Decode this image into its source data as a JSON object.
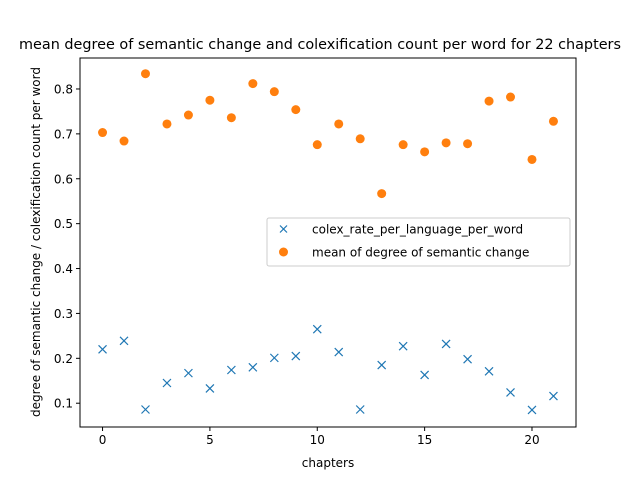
{
  "chart_data": {
    "type": "scatter",
    "title": "mean degree of semantic change and colexification count per word for 22 chapters",
    "xlabel": "chapters",
    "ylabel": "degree of semantic change / colexification count per word",
    "xlim": [
      -1.05,
      22.05
    ],
    "ylim": [
      0.047,
      0.869
    ],
    "x_ticks": [
      0,
      5,
      10,
      15,
      20
    ],
    "y_ticks": [
      0.1,
      0.2,
      0.3,
      0.4,
      0.5,
      0.6,
      0.7,
      0.8
    ],
    "grid": false,
    "legend_position": "center-right",
    "x": [
      0,
      1,
      2,
      3,
      4,
      5,
      6,
      7,
      8,
      9,
      10,
      11,
      12,
      13,
      14,
      15,
      16,
      17,
      18,
      19,
      20,
      21
    ],
    "series": [
      {
        "name": "colex_rate_per_language_per_word",
        "marker": "x",
        "color": "#1f77b4",
        "values": [
          0.22,
          0.239,
          0.086,
          0.145,
          0.167,
          0.133,
          0.174,
          0.18,
          0.201,
          0.205,
          0.265,
          0.214,
          0.086,
          0.185,
          0.227,
          0.163,
          0.232,
          0.198,
          0.171,
          0.124,
          0.085,
          0.116
        ]
      },
      {
        "name": "mean of degree of semantic change",
        "marker": "o",
        "color": "#ff7f0e",
        "values": [
          0.703,
          0.684,
          0.834,
          0.722,
          0.742,
          0.775,
          0.736,
          0.812,
          0.794,
          0.754,
          0.676,
          0.722,
          0.689,
          0.567,
          0.676,
          0.66,
          0.68,
          0.678,
          0.773,
          0.782,
          0.643,
          0.728
        ]
      }
    ]
  }
}
